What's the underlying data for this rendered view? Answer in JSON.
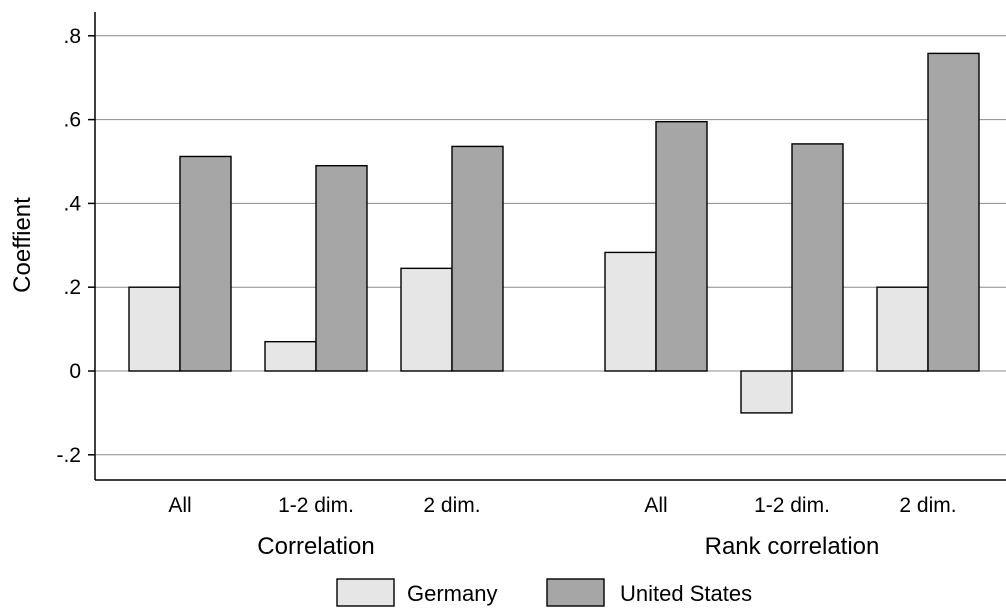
{
  "chart_data": {
    "type": "bar",
    "ylabel": "Coeffient",
    "ylim": [
      -0.26,
      0.86
    ],
    "yticks": [
      {
        "value": -0.2,
        "label": "-.2"
      },
      {
        "value": 0,
        "label": "0"
      },
      {
        "value": 0.2,
        "label": ".2"
      },
      {
        "value": 0.4,
        "label": ".4"
      },
      {
        "value": 0.6,
        "label": ".6"
      },
      {
        "value": 0.8,
        "label": ".8"
      }
    ],
    "grid": true,
    "groups": [
      {
        "label": "Correlation",
        "categories": [
          "All",
          "1-2 dim.",
          "2 dim."
        ]
      },
      {
        "label": "Rank correlation",
        "categories": [
          "All",
          "1-2 dim.",
          "2 dim."
        ]
      }
    ],
    "series": [
      {
        "name": "Germany",
        "color": "#e6e6e6",
        "values": [
          0.2,
          0.07,
          0.245,
          0.283,
          -0.1,
          0.2
        ]
      },
      {
        "name": "United States",
        "color": "#a6a6a6",
        "values": [
          0.512,
          0.49,
          0.536,
          0.595,
          0.542,
          0.758
        ]
      }
    ],
    "legend_position": "bottom"
  }
}
